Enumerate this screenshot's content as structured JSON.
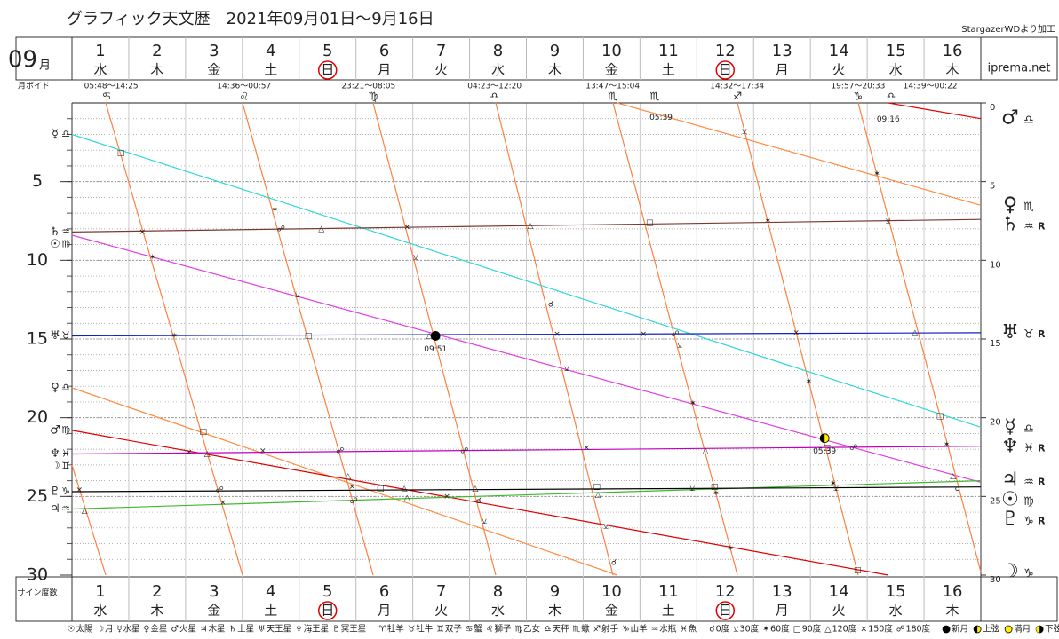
{
  "chart_data": {
    "type": "line",
    "title": "グラフィック天文歴　2021年09月01日～9月16日",
    "credit": "StargazerWDより加工",
    "site": "iprema.net",
    "month": "09",
    "month_unit": "月",
    "ylabel": "サイン度数",
    "categories": [
      "1",
      "2",
      "3",
      "4",
      "5",
      "6",
      "7",
      "8",
      "9",
      "10",
      "11",
      "12",
      "13",
      "14",
      "15",
      "16"
    ],
    "weekdays": [
      "水",
      "木",
      "金",
      "土",
      "日",
      "月",
      "火",
      "水",
      "木",
      "金",
      "土",
      "日",
      "月",
      "火",
      "水",
      "木"
    ],
    "weekday_colors": {
      "土": "#2233cc",
      "日": "#e00000"
    },
    "circled_weekday": "日",
    "ylim": [
      0,
      30
    ],
    "yreverse": true,
    "yticks": [
      5,
      10,
      15,
      20,
      25,
      30
    ],
    "y2ticks": [
      0,
      5,
      10,
      15,
      20,
      25,
      30
    ],
    "ygrid_minor": 1,
    "grid": true,
    "series": [
      {
        "name": "太陽",
        "symbol": "☉",
        "color": "#e040e0",
        "sign_start": "♍",
        "sign_end": "♍",
        "x": [
          1,
          17
        ],
        "values": [
          8.4,
          24.1
        ]
      },
      {
        "name": "月",
        "symbol": "☽",
        "color": "#ff8040",
        "sign_start": "♊",
        "sign_end": "♑",
        "x": [
          1,
          1.594,
          1.594,
          1.594,
          4.003,
          4.003,
          4.003,
          6.302,
          6.302,
          6.302,
          8.46,
          8.46,
          8.46,
          10.525,
          10.525,
          10.525,
          12.714,
          12.714,
          12.714,
          14.841,
          14.841,
          14.841,
          17
        ],
        "values": [
          23.0,
          30,
          null,
          0,
          30,
          null,
          0,
          30,
          null,
          0,
          30,
          null,
          0,
          30,
          null,
          0,
          30,
          null,
          0,
          30,
          null,
          0,
          29.8
        ]
      },
      {
        "name": "水星",
        "symbol": "☿",
        "color": "#30d8d8",
        "sign_start": "♎",
        "sign_end": "♎",
        "x": [
          1,
          17
        ],
        "values": [
          2.0,
          20.6
        ]
      },
      {
        "name": "金星",
        "symbol": "♀",
        "color": "#ff8c40",
        "sign_start": "♎",
        "sign_end": "♏",
        "x": [
          1,
          10.6,
          10.6,
          10.6,
          17
        ],
        "values": [
          18.1,
          30,
          null,
          0,
          6.5
        ]
      },
      {
        "name": "火星",
        "symbol": "♂",
        "color": "#e00000",
        "sign_start": "♍",
        "sign_end": "♎",
        "x": [
          1,
          15.37,
          15.37,
          15.37,
          17
        ],
        "values": [
          20.8,
          30,
          null,
          0,
          1.0
        ]
      },
      {
        "name": "木星",
        "symbol": "♃",
        "color": "#40b830",
        "sign_start": "♒",
        "sign_end": "♒",
        "retrograde": "R",
        "x": [
          1,
          17
        ],
        "values": [
          25.8,
          24.0
        ]
      },
      {
        "name": "土星",
        "symbol": "♄",
        "color": "#7a3a30",
        "sign_start": "♒",
        "sign_end": "♒",
        "retrograde": "R",
        "x": [
          1,
          17
        ],
        "values": [
          8.2,
          7.4
        ]
      },
      {
        "name": "天王星",
        "symbol": "♅",
        "color": "#1020c0",
        "sign_start": "♉",
        "sign_end": "♉",
        "retrograde": "R",
        "x": [
          1,
          17
        ],
        "values": [
          14.8,
          14.6
        ]
      },
      {
        "name": "海王星",
        "symbol": "♆",
        "color": "#c000c0",
        "sign_start": "♓",
        "sign_end": "♓",
        "retrograde": "R",
        "x": [
          1,
          17
        ],
        "values": [
          22.3,
          21.8
        ]
      },
      {
        "name": "冥王星",
        "symbol": "♇",
        "color": "#000000",
        "sign_start": "♑",
        "sign_end": "♑",
        "retrograde": "R",
        "x": [
          1,
          17
        ],
        "values": [
          24.7,
          24.4
        ]
      }
    ],
    "signs": [
      {
        "symbol": "♈",
        "name": "牡羊",
        "color": "#e00000"
      },
      {
        "symbol": "♉",
        "name": "牡牛",
        "color": "#8b4513"
      },
      {
        "symbol": "♊",
        "name": "双子",
        "color": "#20a020"
      },
      {
        "symbol": "♋",
        "name": "蟹",
        "color": "#10b0c0"
      },
      {
        "symbol": "♌",
        "name": "獅子",
        "color": "#e00000"
      },
      {
        "symbol": "♍",
        "name": "乙女",
        "color": "#8b4513"
      },
      {
        "symbol": "♎",
        "name": "天秤",
        "color": "#20a020"
      },
      {
        "symbol": "♏",
        "name": "蠍",
        "color": "#10b0c0"
      },
      {
        "symbol": "♐",
        "name": "射手",
        "color": "#e00000"
      },
      {
        "symbol": "♑",
        "name": "山羊",
        "color": "#8b4513"
      },
      {
        "symbol": "♒",
        "name": "水瓶",
        "color": "#20a020"
      },
      {
        "symbol": "♓",
        "name": "魚",
        "color": "#10b0c0"
      }
    ],
    "aspects": [
      {
        "symbol": "☌",
        "name": "0度",
        "color": "#000000",
        "x": [
          8.16,
          9.43,
          10.54,
          16.59
        ],
        "y": [
          25.3,
          12.8,
          29.2,
          24.5
        ]
      },
      {
        "symbol": "⚺",
        "name": "30度",
        "color": "#20c8c8",
        "x": [
          4.97,
          7.05,
          8.26,
          9.71,
          10.4,
          11.7,
          11.92,
          12.84,
          14.45,
          15.37
        ],
        "y": [
          12.2,
          9.8,
          26.6,
          16.9,
          26.9,
          15.4,
          24.5,
          1.8,
          24.5,
          7.5
        ]
      },
      {
        "symbol": "✶",
        "name": "60度",
        "color": "#e00000",
        "x": [
          2.42,
          2.8,
          4.57,
          11.93,
          12.34,
          12.59,
          13.25,
          13.97,
          14.4,
          15.17,
          16.4
        ],
        "y": [
          9.8,
          14.8,
          6.8,
          19.1,
          24.8,
          28.3,
          7.5,
          17.7,
          24.2,
          4.5,
          21.7
        ]
      },
      {
        "symbol": "□",
        "name": "90度",
        "color": "#1030d0",
        "x": [
          1.86,
          3.31,
          5.16,
          6.43,
          10.24,
          11.17,
          12.31,
          14.29,
          14.83,
          16.28
        ],
        "y": [
          3.2,
          20.9,
          14.8,
          24.5,
          24.4,
          7.6,
          24.4,
          21.9,
          29.7,
          19.9
        ]
      },
      {
        "symbol": "△",
        "name": "120度",
        "color": "#e00000",
        "x": [
          1.22,
          3.38,
          5.39,
          5.86,
          6.85,
          6.9,
          7.29,
          8.1,
          9.07,
          10.26,
          12.15,
          15.84,
          16.51
        ],
        "y": [
          25.9,
          22.3,
          8.0,
          23.7,
          24.5,
          25.1,
          14.8,
          24.5,
          7.8,
          24.9,
          22.1,
          14.6,
          23.7
        ]
      },
      {
        "symbol": "×",
        "name": "150度",
        "color": "#1030d0",
        "x": [
          1.13,
          2.24,
          3.06,
          3.66,
          4.36,
          5.93,
          6.9,
          7.6,
          9.54,
          10.06,
          11.06,
          13.75
        ],
        "y": [
          24.6,
          8.2,
          22.2,
          25.4,
          22.1,
          24.4,
          7.9,
          25.0,
          14.7,
          21.9,
          14.7,
          14.6
        ]
      },
      {
        "symbol": "☍",
        "name": "180度",
        "color": "#1030d0",
        "x": [
          3.6,
          4.68,
          5.72,
          5.96,
          7.91,
          11.62,
          14.76
        ],
        "y": [
          24.6,
          8.0,
          22.1,
          25.3,
          22.1,
          14.7,
          21.9
        ]
      }
    ],
    "phases": [
      {
        "name": "新月",
        "colors": [
          "#000000",
          "#000000"
        ],
        "x": [
          7.4
        ],
        "y": [
          14.8
        ],
        "labels": [
          "09:51"
        ]
      },
      {
        "name": "上弦",
        "colors": [
          "#000000",
          "#ffee00"
        ],
        "x": [
          14.25
        ],
        "y": [
          21.3
        ],
        "labels": [
          "05:39"
        ]
      },
      {
        "name": "満月",
        "colors": [
          "#ffee00",
          "#ffee00"
        ]
      },
      {
        "name": "下弦",
        "colors": [
          "#ffee00",
          "#000000"
        ]
      }
    ],
    "annotations": [
      {
        "text": "05:39",
        "x": 11.37,
        "y": 0.6,
        "color": "#222222"
      },
      {
        "text": "09:16",
        "x": 15.37,
        "y": 0.7,
        "color": "#888888"
      }
    ],
    "moon_void": {
      "label": "月ボイド",
      "periods": [
        {
          "time": "05:48～14:25",
          "x": 1.69
        },
        {
          "time": "14:36～00:57",
          "x": 4.03
        },
        {
          "time": "23:21～08:05",
          "x": 6.22
        },
        {
          "time": "04:23～12:20",
          "x": 8.44
        },
        {
          "time": "13:47～15:04",
          "x": 10.52
        },
        {
          "time": "14:32～17:34",
          "x": 12.71
        },
        {
          "time": "19:57～20:33",
          "x": 14.84
        },
        {
          "time": "14:39～00:22",
          "x": 16.11
        }
      ],
      "ingress": [
        {
          "sign": "♋",
          "x": 1.61
        },
        {
          "sign": "♌",
          "x": 4.03
        },
        {
          "sign": "♍",
          "x": 6.3
        },
        {
          "sign": "♎",
          "x": 8.44
        },
        {
          "sign": "♏",
          "x": 10.52
        },
        {
          "sign": "♏",
          "x": 11.26
        },
        {
          "sign": "♐",
          "x": 12.71
        },
        {
          "sign": "♑",
          "x": 14.84
        },
        {
          "sign": "♎",
          "x": 15.42
        }
      ]
    }
  }
}
